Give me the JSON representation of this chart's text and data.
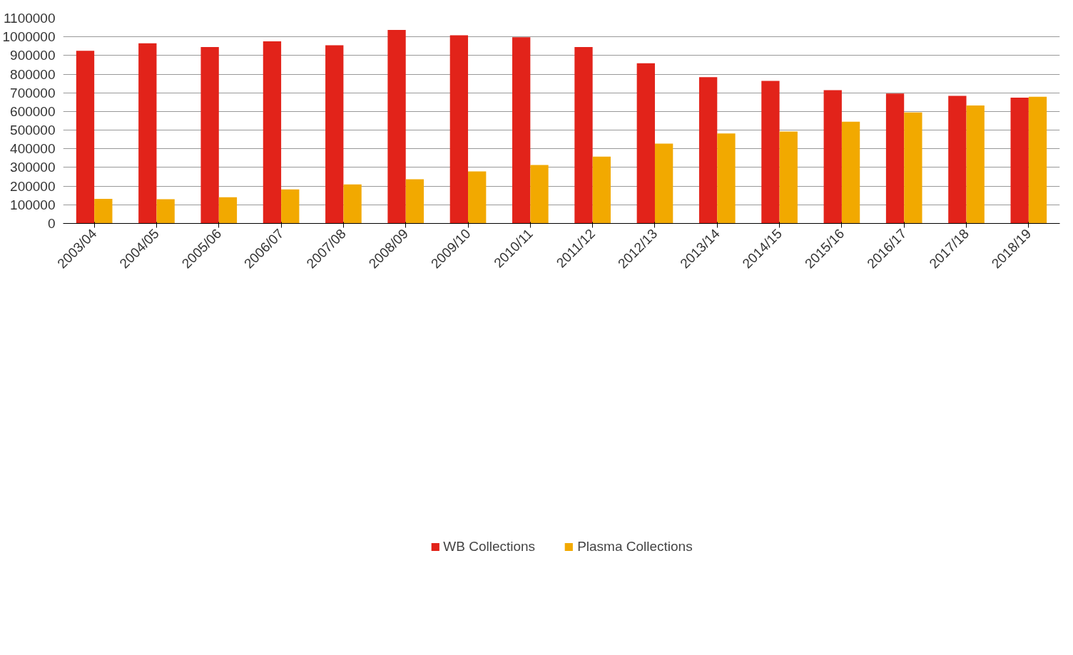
{
  "chart_data": {
    "type": "bar",
    "categories": [
      "2003/04",
      "2004/05",
      "2005/06",
      "2006/07",
      "2007/08",
      "2008/09",
      "2009/10",
      "2010/11",
      "2011/12",
      "2012/13",
      "2013/14",
      "2014/15",
      "2015/16",
      "2016/17",
      "2017/18",
      "2018/19"
    ],
    "series": [
      {
        "name": "WB Collections",
        "color": "#e2231a",
        "values": [
          925000,
          965000,
          945000,
          976000,
          955000,
          1037000,
          1008000,
          998000,
          945000,
          858000,
          784000,
          764000,
          714000,
          696000,
          684000,
          674000
        ]
      },
      {
        "name": "Plasma Collections",
        "color": "#f2a900",
        "values": [
          132000,
          130000,
          140000,
          182000,
          209000,
          237000,
          279000,
          313000,
          358000,
          428000,
          482000,
          493000,
          545000,
          595000,
          632000,
          679000
        ]
      }
    ],
    "ylim": [
      0,
      1100000
    ],
    "yticks": [
      0,
      100000,
      200000,
      300000,
      400000,
      500000,
      600000,
      700000,
      800000,
      900000,
      1000000,
      1100000
    ],
    "grid": "y",
    "legend": "bottom"
  }
}
